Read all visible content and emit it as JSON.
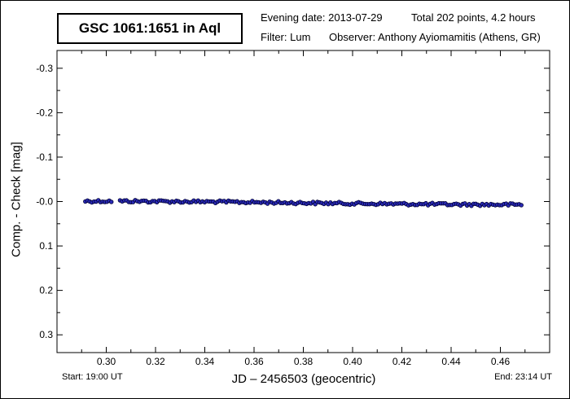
{
  "header": {
    "title": "GSC 1061:1651 in Aql",
    "evening_date": "Evening date: 2013-07-29",
    "total": "Total 202 points, 4.2 hours",
    "filter": "Filter: Lum",
    "observer": "Observer: Anthony Ayiomamitis (Athens, GR)"
  },
  "footer": {
    "start": "Start: 19:00 UT",
    "end": "End: 23:14 UT"
  },
  "colors": {
    "marker_fill": "#2a2ab8",
    "marker_edge": "#000033"
  },
  "chart_data": {
    "type": "scatter",
    "title": "GSC 1061:1651 in Aql",
    "xlabel": "JD – 2456503  (geocentric)",
    "ylabel": "Comp. - Check [mag]",
    "xlim": [
      0.28,
      0.48
    ],
    "ylim": [
      0.34,
      -0.34
    ],
    "y_inverted": true,
    "x_ticks": [
      "0.30",
      "0.32",
      "0.34",
      "0.36",
      "0.38",
      "0.40",
      "0.42",
      "0.44",
      "0.46"
    ],
    "y_ticks": [
      "-0.3",
      "-0.2",
      "-0.1",
      "-0.0",
      "0.1",
      "0.2",
      "0.3"
    ],
    "grid": false,
    "series": [
      {
        "points_count": 202,
        "x_start": 0.2915,
        "x_end": 0.4685,
        "mean": 0.003,
        "scatter": 0.003
      }
    ]
  }
}
